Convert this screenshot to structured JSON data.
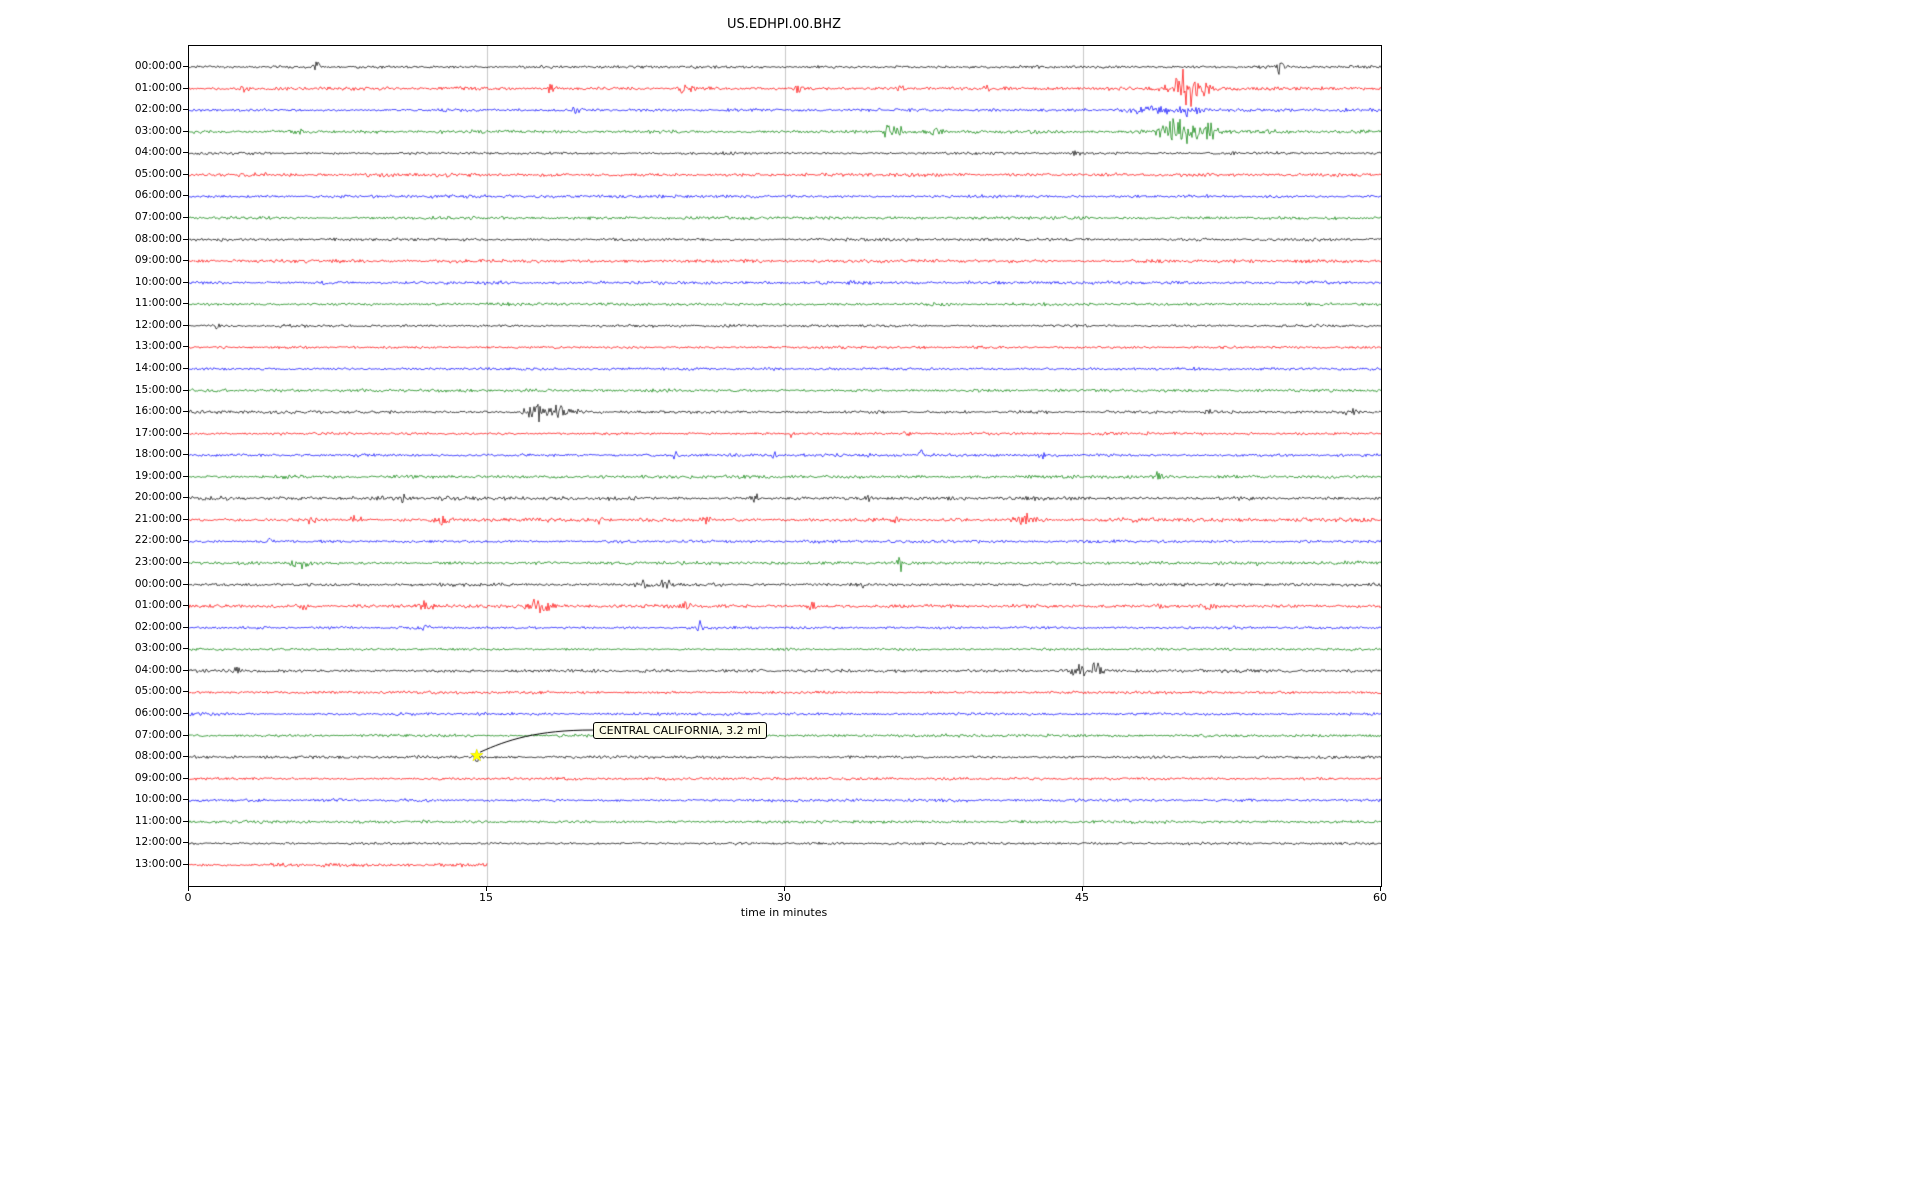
{
  "title": "US.EDHPI.00.BHZ",
  "x_axis": {
    "label": "time in minutes",
    "ticks": [
      "0",
      "15",
      "30",
      "45",
      "60"
    ],
    "range": [
      0,
      60
    ]
  },
  "annotation": {
    "label": "CENTRAL CALIFORNIA, 3.2 ml",
    "row_index": 32,
    "row_label": "08:00:00",
    "minute": 14.5,
    "marker": "star",
    "marker_color": "#ffff00"
  },
  "colors": {
    "trace_cycle": [
      "#000000",
      "#ff0000",
      "#0000ff",
      "#008000"
    ],
    "grid": "#c8c8c8",
    "background": "#ffffff",
    "axes": "#000000"
  },
  "chart_data": {
    "type": "line",
    "subtype": "helicorder-dayplot",
    "xlabel": "time in minutes",
    "xlim": [
      0,
      60
    ],
    "grid": "vertical-only",
    "minutes_per_row": 60,
    "rows": [
      {
        "label": "00:00:00",
        "color": "#000000",
        "amp": 1.6,
        "events": [
          [
            6.4,
            8,
            0.15
          ],
          [
            54.9,
            9,
            0.15
          ]
        ]
      },
      {
        "label": "01:00:00",
        "color": "#ff0000",
        "amp": 1.7,
        "events": [
          [
            2.8,
            5,
            0.15
          ],
          [
            18.2,
            6,
            0.25
          ],
          [
            25.0,
            6,
            0.3
          ],
          [
            30.6,
            5,
            0.2
          ],
          [
            35.8,
            4,
            0.15
          ],
          [
            40.1,
            4,
            0.15
          ],
          [
            50.3,
            20,
            0.8
          ]
        ]
      },
      {
        "label": "02:00:00",
        "color": "#0000ff",
        "amp": 1.8,
        "events": [
          [
            19.5,
            4,
            0.2
          ],
          [
            48.5,
            4,
            1.2
          ],
          [
            50.3,
            6,
            0.5
          ]
        ]
      },
      {
        "label": "03:00:00",
        "color": "#008000",
        "amp": 2.0,
        "events": [
          [
            5.6,
            5,
            0.2
          ],
          [
            35.4,
            8,
            0.5
          ],
          [
            37.6,
            7,
            0.3
          ],
          [
            49.8,
            14,
            0.9
          ],
          [
            51.3,
            9,
            0.4
          ]
        ]
      },
      {
        "label": "04:00:00",
        "color": "#000000",
        "amp": 1.5,
        "events": [
          [
            44.7,
            3,
            0.3
          ]
        ]
      },
      {
        "label": "05:00:00",
        "color": "#ff0000",
        "amp": 1.9,
        "events": []
      },
      {
        "label": "06:00:00",
        "color": "#0000ff",
        "amp": 1.7,
        "events": []
      },
      {
        "label": "07:00:00",
        "color": "#008000",
        "amp": 1.7,
        "events": []
      },
      {
        "label": "08:00:00",
        "color": "#000000",
        "amp": 1.6,
        "events": []
      },
      {
        "label": "09:00:00",
        "color": "#ff0000",
        "amp": 1.8,
        "events": []
      },
      {
        "label": "10:00:00",
        "color": "#0000ff",
        "amp": 1.8,
        "events": []
      },
      {
        "label": "11:00:00",
        "color": "#008000",
        "amp": 1.7,
        "events": []
      },
      {
        "label": "12:00:00",
        "color": "#000000",
        "amp": 1.5,
        "events": [
          [
            1.4,
            4,
            0.15
          ]
        ]
      },
      {
        "label": "13:00:00",
        "color": "#ff0000",
        "amp": 1.5,
        "events": []
      },
      {
        "label": "14:00:00",
        "color": "#0000ff",
        "amp": 1.6,
        "events": []
      },
      {
        "label": "15:00:00",
        "color": "#008000",
        "amp": 1.8,
        "events": []
      },
      {
        "label": "16:00:00",
        "color": "#000000",
        "amp": 1.6,
        "events": [
          [
            17.5,
            13,
            0.5
          ],
          [
            18.6,
            8,
            0.4
          ],
          [
            19.4,
            5,
            0.4
          ],
          [
            51.2,
            4,
            0.2
          ],
          [
            58.5,
            5,
            0.4
          ]
        ]
      },
      {
        "label": "17:00:00",
        "color": "#ff0000",
        "amp": 1.5,
        "events": [
          [
            30.3,
            4,
            0.12
          ],
          [
            36.1,
            7,
            0.15
          ],
          [
            48.2,
            3,
            0.12
          ]
        ]
      },
      {
        "label": "18:00:00",
        "color": "#0000ff",
        "amp": 1.7,
        "events": [
          [
            24.5,
            4,
            0.15
          ],
          [
            29.4,
            4,
            0.15
          ],
          [
            36.8,
            8,
            0.15
          ],
          [
            42.9,
            4,
            0.15
          ]
        ]
      },
      {
        "label": "19:00:00",
        "color": "#008000",
        "amp": 1.8,
        "events": [
          [
            48.8,
            5,
            0.25
          ]
        ]
      },
      {
        "label": "20:00:00",
        "color": "#000000",
        "amp": 2.1,
        "events": [
          [
            10.9,
            5,
            0.3
          ],
          [
            18.7,
            4,
            0.2
          ],
          [
            28.5,
            5,
            0.2
          ],
          [
            34.1,
            4,
            0.2
          ]
        ]
      },
      {
        "label": "21:00:00",
        "color": "#ff0000",
        "amp": 2.1,
        "events": [
          [
            6.1,
            5,
            0.25
          ],
          [
            8.4,
            5,
            0.25
          ],
          [
            12.9,
            6,
            0.4
          ],
          [
            20.7,
            4,
            0.2
          ],
          [
            26.0,
            6,
            0.25
          ],
          [
            35.6,
            5,
            0.2
          ],
          [
            42.1,
            7,
            0.4
          ]
        ]
      },
      {
        "label": "22:00:00",
        "color": "#0000ff",
        "amp": 1.6,
        "events": [
          [
            4.1,
            3,
            0.2
          ]
        ]
      },
      {
        "label": "23:00:00",
        "color": "#008000",
        "amp": 1.9,
        "events": [
          [
            5.6,
            6,
            0.5
          ],
          [
            35.8,
            10,
            0.2
          ],
          [
            53.7,
            4,
            0.2
          ]
        ]
      },
      {
        "label": "00:00:00",
        "color": "#000000",
        "amp": 1.9,
        "events": [
          [
            22.8,
            7,
            0.25
          ],
          [
            24.0,
            7,
            0.2
          ],
          [
            33.8,
            5,
            0.15
          ]
        ]
      },
      {
        "label": "01:00:00",
        "color": "#ff0000",
        "amp": 2.1,
        "events": [
          [
            5.7,
            6,
            0.3
          ],
          [
            11.9,
            7,
            0.4
          ],
          [
            17.6,
            8,
            0.5
          ],
          [
            25.0,
            6,
            0.25
          ],
          [
            31.3,
            5,
            0.2
          ],
          [
            51.4,
            5,
            0.25
          ]
        ]
      },
      {
        "label": "02:00:00",
        "color": "#0000ff",
        "amp": 1.6,
        "events": [
          [
            11.9,
            4,
            0.2
          ],
          [
            25.7,
            7,
            0.15
          ]
        ]
      },
      {
        "label": "03:00:00",
        "color": "#008000",
        "amp": 1.4,
        "events": []
      },
      {
        "label": "04:00:00",
        "color": "#000000",
        "amp": 1.7,
        "events": [
          [
            2.4,
            5,
            0.15
          ],
          [
            45.0,
            6,
            0.7
          ],
          [
            45.7,
            15,
            0.2
          ]
        ]
      },
      {
        "label": "05:00:00",
        "color": "#ff0000",
        "amp": 1.5,
        "events": []
      },
      {
        "label": "06:00:00",
        "color": "#0000ff",
        "amp": 1.5,
        "events": []
      },
      {
        "label": "07:00:00",
        "color": "#008000",
        "amp": 1.6,
        "events": []
      },
      {
        "label": "08:00:00",
        "color": "#000000",
        "amp": 1.5,
        "events": [
          [
            14.5,
            4,
            0.2
          ]
        ]
      },
      {
        "label": "09:00:00",
        "color": "#ff0000",
        "amp": 1.5,
        "events": []
      },
      {
        "label": "10:00:00",
        "color": "#0000ff",
        "amp": 1.7,
        "events": []
      },
      {
        "label": "11:00:00",
        "color": "#008000",
        "amp": 1.7,
        "events": []
      },
      {
        "label": "12:00:00",
        "color": "#000000",
        "amp": 1.4,
        "events": []
      },
      {
        "label": "13:00:00",
        "color": "#ff0000",
        "amp": 1.8,
        "events": [],
        "end": 15
      }
    ]
  }
}
